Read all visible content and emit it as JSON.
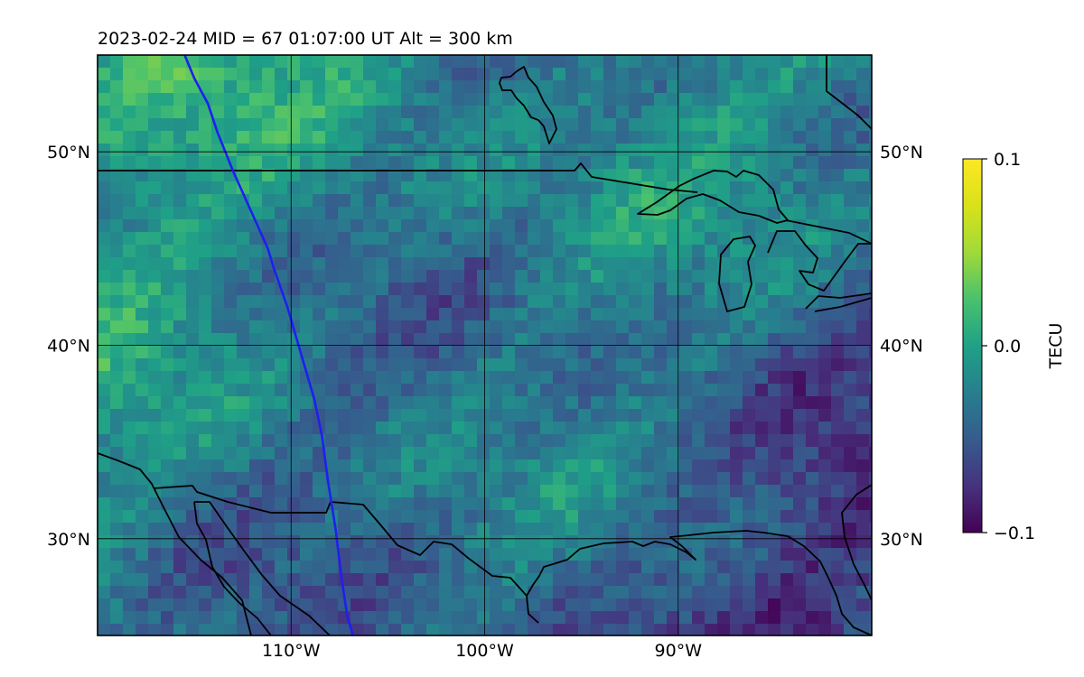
{
  "title": "2023-02-24  MID =  67    01:07:00  UT  Alt = 300 km",
  "map": {
    "lon_range": [
      -120,
      -80
    ],
    "lat_range": [
      25,
      55
    ],
    "gridlines": true,
    "lon_ticks": [
      {
        "value": -110,
        "label": "110°W"
      },
      {
        "value": -100,
        "label": "100°W"
      },
      {
        "value": -90,
        "label": "90°W"
      }
    ],
    "lat_ticks": [
      {
        "value": 30,
        "label": "30°N"
      },
      {
        "value": 40,
        "label": "40°N"
      },
      {
        "value": 50,
        "label": "50°N"
      }
    ],
    "track_color": "#1f1ff0",
    "track": [
      [
        -115.5,
        55
      ],
      [
        -115,
        53.8
      ],
      [
        -114.3,
        52.5
      ],
      [
        -113.8,
        51
      ],
      [
        -113,
        49
      ],
      [
        -112.1,
        47
      ],
      [
        -111.2,
        45
      ],
      [
        -110.9,
        44
      ],
      [
        -110.2,
        42
      ],
      [
        -109.5,
        39.6
      ],
      [
        -108.8,
        37.2
      ],
      [
        -108.4,
        35.3
      ],
      [
        -108.1,
        33
      ],
      [
        -107.7,
        30.5
      ],
      [
        -107.4,
        28
      ],
      [
        -107.1,
        26
      ],
      [
        -106.8,
        25
      ]
    ],
    "field_description": "differential TEC perturbation map"
  },
  "colorbar": {
    "label": "TECU",
    "colormap": "viridis",
    "min": -0.1,
    "max": 0.1,
    "ticks": [
      {
        "value": 0.1,
        "label": "0.1"
      },
      {
        "value": 0.0,
        "label": "0.0"
      },
      {
        "value": -0.1,
        "label": "−0.1"
      }
    ]
  }
}
